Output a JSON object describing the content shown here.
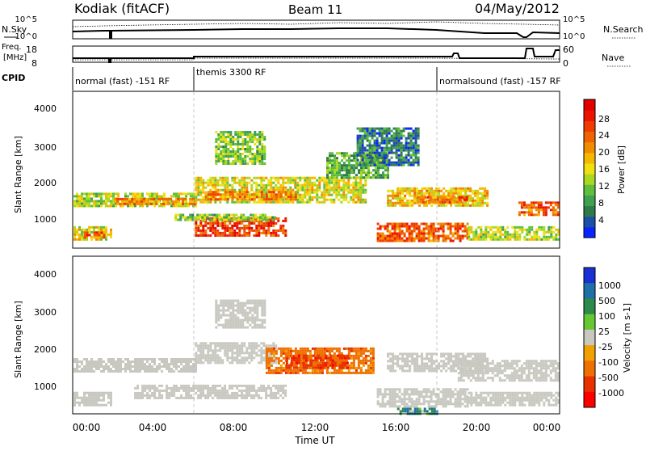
{
  "header": {
    "station": "Kodiak (fitACF)",
    "beam": "Beam 11",
    "date": "04/May/2012"
  },
  "top_panels": {
    "nsky_label": "N.Sky",
    "nsky_ticks": [
      "10^5",
      "10^0"
    ],
    "nsearch_label": "N.Search",
    "nsearch_ticks": [
      "10^5",
      "10^0"
    ],
    "freq_label_1": "Freq.",
    "freq_label_2": "[MHz]",
    "freq_ticks": [
      "18",
      "8"
    ],
    "nave_label": "Nave",
    "nave_ticks": [
      "60",
      "0"
    ],
    "cpid_label": "CPID",
    "cpid_segments": [
      {
        "label": "normal (fast) -151 RF",
        "start_hour": 0,
        "end_hour": 6
      },
      {
        "label": "themis 3300 RF",
        "start_hour": 6,
        "end_hour": 18
      },
      {
        "label": "normalsound (fast) -157 RF",
        "start_hour": 18,
        "end_hour": 24
      }
    ]
  },
  "axes": {
    "xlabel": "Time UT",
    "x_ticks": [
      "00:00",
      "04:00",
      "08:00",
      "12:00",
      "16:00",
      "20:00",
      "00:00"
    ],
    "ylabel": "Slant Range [km]",
    "y_ticks": [
      "4000",
      "3000",
      "2000",
      "1000"
    ]
  },
  "colorbars": {
    "power": {
      "label": "Power [dB]",
      "ticks": [
        "28",
        "24",
        "20",
        "16",
        "12",
        "8",
        "4"
      ],
      "colors": [
        "#0a24ff",
        "#1c4fa8",
        "#2f7a4a",
        "#3fa052",
        "#5fbf3a",
        "#a8d820",
        "#f0e010",
        "#f5b800",
        "#f08c00",
        "#ef6400",
        "#f03c00",
        "#ec1400",
        "#e00000"
      ]
    },
    "velocity": {
      "label": "Velocity [m s-1]",
      "ticks": [
        "1000",
        "500",
        "100",
        "25",
        "-25",
        "-100",
        "-500",
        "-1000"
      ],
      "colors": [
        "#1a2fd6",
        "#1f6fa8",
        "#2c8a4a",
        "#65c832",
        "#c8c8c0",
        "#f0a000",
        "#ef7000",
        "#e83000",
        "#ff0000"
      ]
    }
  },
  "chart_data": [
    {
      "type": "heatmap",
      "title": "Power",
      "xlabel": "Time UT",
      "ylabel": "Slant Range [km]",
      "colorbar_label": "Power [dB]",
      "xlim": [
        0,
        24
      ],
      "ylim": [
        200,
        4600
      ],
      "clim": [
        0,
        32
      ],
      "regions": [
        {
          "t0": 0.0,
          "t1": 6.0,
          "r0": 1400,
          "r1": 1750,
          "power": 14
        },
        {
          "t0": 2.0,
          "t1": 6.0,
          "r0": 1450,
          "r1": 1600,
          "power": 22
        },
        {
          "t0": 0.0,
          "t1": 1.8,
          "r0": 400,
          "r1": 800,
          "power": 16
        },
        {
          "t0": 0.5,
          "t1": 1.5,
          "r0": 500,
          "r1": 650,
          "power": 24
        },
        {
          "t0": 6.0,
          "t1": 10.5,
          "r0": 550,
          "r1": 1050,
          "power": 26
        },
        {
          "t0": 5.0,
          "t1": 10.0,
          "r0": 1000,
          "r1": 1150,
          "power": 12
        },
        {
          "t0": 6.0,
          "t1": 14.5,
          "r0": 1500,
          "r1": 2200,
          "power": 16
        },
        {
          "t0": 6.5,
          "t1": 11.0,
          "r0": 1550,
          "r1": 1800,
          "power": 22
        },
        {
          "t0": 7.0,
          "t1": 9.5,
          "r0": 2600,
          "r1": 3500,
          "power": 12
        },
        {
          "t0": 12.5,
          "t1": 15.5,
          "r0": 2200,
          "r1": 2900,
          "power": 10
        },
        {
          "t0": 14.0,
          "t1": 17.0,
          "r0": 2500,
          "r1": 3600,
          "power": 6
        },
        {
          "t0": 15.0,
          "t1": 19.5,
          "r0": 400,
          "r1": 900,
          "power": 24
        },
        {
          "t0": 15.5,
          "t1": 20.5,
          "r0": 1400,
          "r1": 1900,
          "power": 18
        },
        {
          "t0": 17.0,
          "t1": 19.5,
          "r0": 1450,
          "r1": 1650,
          "power": 24
        },
        {
          "t0": 19.5,
          "t1": 24.0,
          "r0": 450,
          "r1": 800,
          "power": 14
        },
        {
          "t0": 22.0,
          "t1": 24.0,
          "r0": 1150,
          "r1": 1500,
          "power": 24
        }
      ]
    },
    {
      "type": "heatmap",
      "title": "Velocity",
      "xlabel": "Time UT",
      "ylabel": "Slant Range [km]",
      "colorbar_label": "Velocity [m s-1]",
      "xlim": [
        0,
        24
      ],
      "ylim": [
        200,
        4600
      ],
      "clim": [
        -1000,
        1000
      ],
      "regions": [
        {
          "t0": 0.0,
          "t1": 6.0,
          "r0": 1400,
          "r1": 1750,
          "velocity": 0
        },
        {
          "t0": 0.0,
          "t1": 1.8,
          "r0": 400,
          "r1": 800,
          "velocity": 0
        },
        {
          "t0": 3.0,
          "t1": 10.5,
          "r0": 600,
          "r1": 1000,
          "velocity": 0
        },
        {
          "t0": 6.0,
          "t1": 10.0,
          "r0": 1600,
          "r1": 2200,
          "velocity": 0
        },
        {
          "t0": 9.5,
          "t1": 14.8,
          "r0": 1350,
          "r1": 2050,
          "velocity": -300
        },
        {
          "t0": 10.5,
          "t1": 13.5,
          "r0": 1500,
          "r1": 1850,
          "velocity": -600
        },
        {
          "t0": 7.0,
          "t1": 9.5,
          "r0": 2600,
          "r1": 3400,
          "velocity": 0
        },
        {
          "t0": 15.0,
          "t1": 19.5,
          "r0": 400,
          "r1": 900,
          "velocity": 0
        },
        {
          "t0": 15.5,
          "t1": 20.5,
          "r0": 1400,
          "r1": 1900,
          "velocity": 0
        },
        {
          "t0": 19.5,
          "t1": 24.0,
          "r0": 450,
          "r1": 800,
          "velocity": 0
        },
        {
          "t0": 19.0,
          "t1": 24.0,
          "r0": 1100,
          "r1": 1700,
          "velocity": 0
        },
        {
          "t0": 16.0,
          "t1": 18.0,
          "r0": 200,
          "r1": 350,
          "velocity": 200
        }
      ]
    }
  ]
}
